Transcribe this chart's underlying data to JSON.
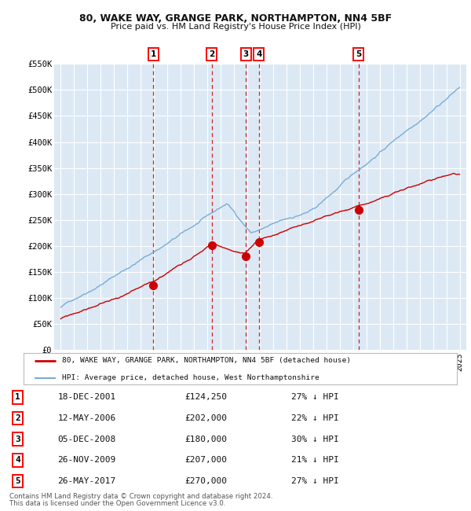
{
  "title1": "80, WAKE WAY, GRANGE PARK, NORTHAMPTON, NN4 5BF",
  "title2": "Price paid vs. HM Land Registry's House Price Index (HPI)",
  "background_color": "#ffffff",
  "plot_bg_color": "#dce9f5",
  "grid_color": "#ffffff",
  "sale_color": "#cc0000",
  "hpi_color": "#7aadd4",
  "sale_label": "80, WAKE WAY, GRANGE PARK, NORTHAMPTON, NN4 5BF (detached house)",
  "hpi_label": "HPI: Average price, detached house, West Northamptonshire",
  "ylim": [
    0,
    550000
  ],
  "yticks": [
    0,
    50000,
    100000,
    150000,
    200000,
    250000,
    300000,
    350000,
    400000,
    450000,
    500000,
    550000
  ],
  "ytick_labels": [
    "£0",
    "£50K",
    "£100K",
    "£150K",
    "£200K",
    "£250K",
    "£300K",
    "£350K",
    "£400K",
    "£450K",
    "£500K",
    "£550K"
  ],
  "xmin": 1995,
  "xmax": 2025,
  "sales": [
    {
      "num": 1,
      "date_str": "18-DEC-2001",
      "year": 2001.96,
      "price": 124250,
      "pct": "27% ↓ HPI"
    },
    {
      "num": 2,
      "date_str": "12-MAY-2006",
      "year": 2006.36,
      "price": 202000,
      "pct": "22% ↓ HPI"
    },
    {
      "num": 3,
      "date_str": "05-DEC-2008",
      "year": 2008.92,
      "price": 180000,
      "pct": "30% ↓ HPI"
    },
    {
      "num": 4,
      "date_str": "26-NOV-2009",
      "year": 2009.9,
      "price": 207000,
      "pct": "21% ↓ HPI"
    },
    {
      "num": 5,
      "date_str": "26-MAY-2017",
      "year": 2017.4,
      "price": 270000,
      "pct": "27% ↓ HPI"
    }
  ],
  "table_rows": [
    [
      1,
      "18-DEC-2001",
      "£124,250",
      "27% ↓ HPI"
    ],
    [
      2,
      "12-MAY-2006",
      "£202,000",
      "22% ↓ HPI"
    ],
    [
      3,
      "05-DEC-2008",
      "£180,000",
      "30% ↓ HPI"
    ],
    [
      4,
      "26-NOV-2009",
      "£207,000",
      "21% ↓ HPI"
    ],
    [
      5,
      "26-MAY-2017",
      "£270,000",
      "27% ↓ HPI"
    ]
  ],
  "footer1": "Contains HM Land Registry data © Crown copyright and database right 2024.",
  "footer2": "This data is licensed under the Open Government Licence v3.0."
}
